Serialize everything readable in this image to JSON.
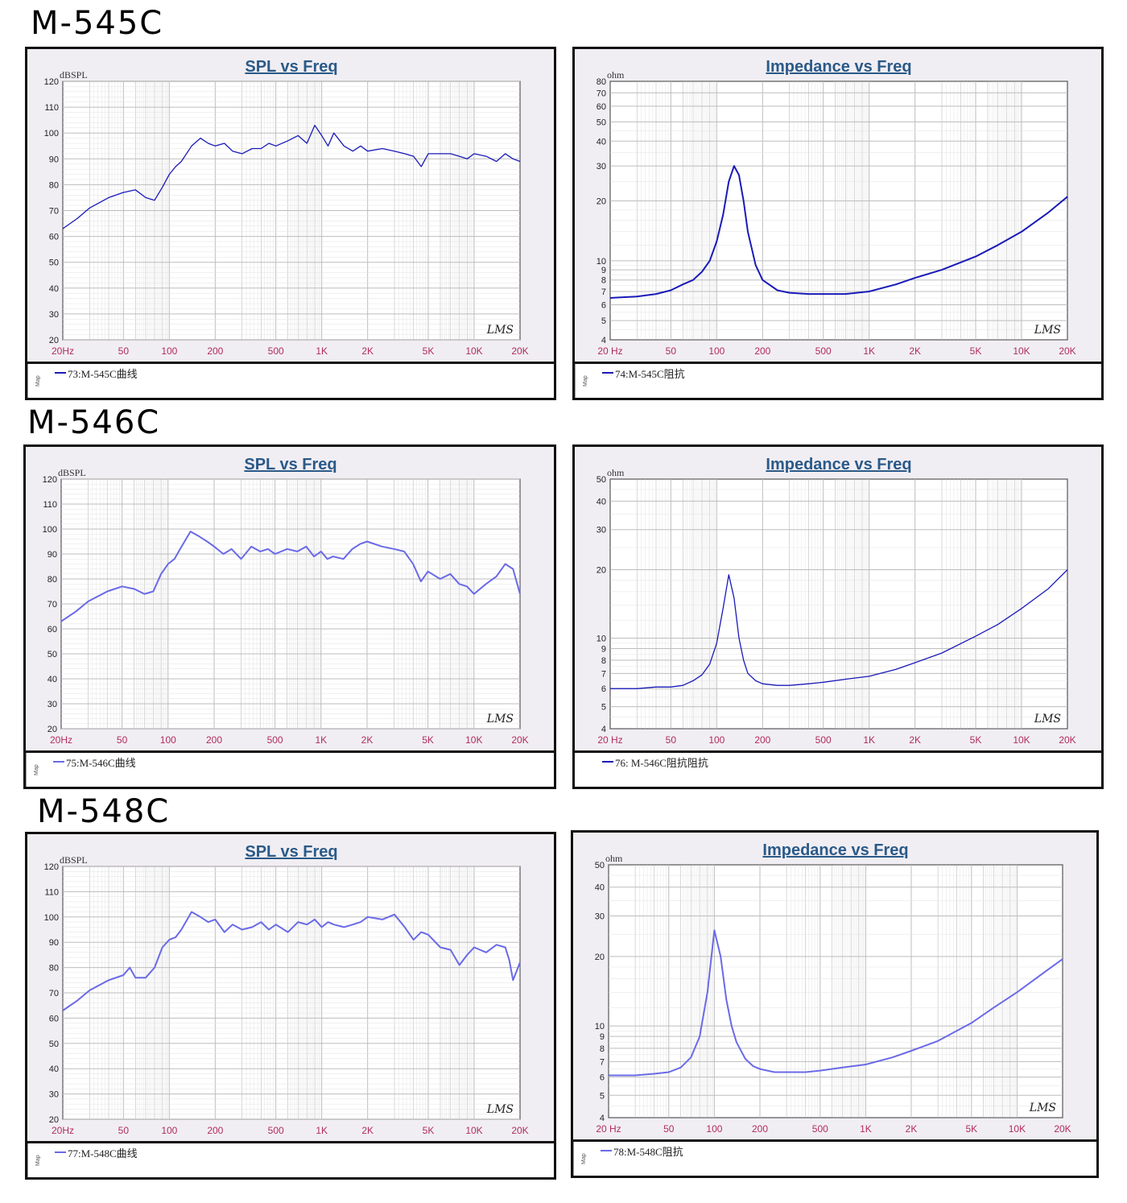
{
  "models": [
    "M-545C",
    "M-546C",
    "M-548C"
  ],
  "colors": {
    "dark_line": "#1a1ab8",
    "light_line": "#6a6ae8",
    "title": "#2a5a88",
    "tick": "#b02c5a",
    "grid": "#bdbdbd"
  },
  "panels": [
    {
      "title": "SPL vs Freq",
      "unit": "dBSPL",
      "legend": "73:M-545C曲线",
      "logo": "LMS",
      "xticks": [
        "20Hz",
        "50",
        "100",
        "200",
        "500",
        "1K",
        "2K",
        "5K",
        "10K",
        "20K"
      ],
      "yticks": [
        "120",
        "110",
        "100",
        "90",
        "80",
        "70",
        "60",
        "50",
        "40",
        "30",
        "20"
      ]
    },
    {
      "title": "Impedance vs Freq",
      "unit": "ohm",
      "legend": "74:M-545C阻抗",
      "logo": "LMS",
      "xticks": [
        "20 Hz",
        "50",
        "100",
        "200",
        "500",
        "1K",
        "2K",
        "5K",
        "10K",
        "20K"
      ],
      "yticks": [
        "80",
        "70",
        "60",
        "50",
        "40",
        "30",
        "20",
        "10",
        "9",
        "8",
        "7",
        "6",
        "5",
        "4"
      ]
    },
    {
      "title": "SPL vs Freq",
      "unit": "dBSPL",
      "legend": "75:M-546C曲线",
      "logo": "LMS",
      "xticks": [
        "20Hz",
        "50",
        "100",
        "200",
        "500",
        "1K",
        "2K",
        "5K",
        "10K",
        "20K"
      ],
      "yticks": [
        "120",
        "110",
        "100",
        "90",
        "80",
        "70",
        "60",
        "50",
        "40",
        "30",
        "20"
      ]
    },
    {
      "title": "Impedance vs Freq",
      "unit": "ohm",
      "legend": "76: M-546C阻抗阻抗",
      "logo": "LMS",
      "xticks": [
        "20 Hz",
        "50",
        "100",
        "200",
        "500",
        "1K",
        "2K",
        "5K",
        "10K",
        "20K"
      ],
      "yticks": [
        "50",
        "40",
        "30",
        "20",
        "10",
        "9",
        "8",
        "7",
        "6",
        "5",
        "4"
      ]
    },
    {
      "title": "SPL vs Freq",
      "unit": "dBSPL",
      "legend": "77:M-548C曲线",
      "logo": "LMS",
      "xticks": [
        "20Hz",
        "50",
        "100",
        "200",
        "500",
        "1K",
        "2K",
        "5K",
        "10K",
        "20K"
      ],
      "yticks": [
        "120",
        "110",
        "100",
        "90",
        "80",
        "70",
        "60",
        "50",
        "40",
        "30",
        "20"
      ]
    },
    {
      "title": "Impedance vs Freq",
      "unit": "ohm",
      "legend": "78:M-548C阻抗",
      "logo": "LMS",
      "xticks": [
        "20 Hz",
        "50",
        "100",
        "200",
        "500",
        "1K",
        "2K",
        "5K",
        "10K",
        "20K"
      ],
      "yticks": [
        "50",
        "40",
        "30",
        "20",
        "10",
        "9",
        "8",
        "7",
        "6",
        "5",
        "4"
      ]
    }
  ],
  "chart_data": [
    {
      "type": "line",
      "title": "SPL vs Freq",
      "ylabel": "dBSPL",
      "xscale": "log",
      "xlim": [
        20,
        20000
      ],
      "ylim": [
        20,
        120
      ],
      "grid": true,
      "series": [
        {
          "name": "73:M-545C曲线",
          "x": [
            20,
            25,
            30,
            40,
            50,
            60,
            70,
            80,
            90,
            100,
            110,
            120,
            140,
            160,
            180,
            200,
            230,
            260,
            300,
            350,
            400,
            450,
            500,
            600,
            700,
            800,
            900,
            1000,
            1100,
            1200,
            1400,
            1600,
            1800,
            2000,
            2500,
            3000,
            3500,
            4000,
            4500,
            5000,
            6000,
            7000,
            8000,
            9000,
            10000,
            12000,
            14000,
            16000,
            18000,
            20000
          ],
          "y": [
            63,
            67,
            71,
            75,
            77,
            78,
            75,
            74,
            79,
            84,
            87,
            89,
            95,
            98,
            96,
            95,
            96,
            93,
            92,
            94,
            94,
            96,
            95,
            97,
            99,
            96,
            103,
            99,
            95,
            100,
            95,
            93,
            95,
            93,
            94,
            93,
            92,
            91,
            87,
            92,
            92,
            92,
            91,
            90,
            92,
            91,
            89,
            92,
            90,
            89
          ]
        }
      ]
    },
    {
      "type": "line",
      "title": "Impedance vs Freq",
      "ylabel": "ohm",
      "xscale": "log",
      "yscale": "log",
      "xlim": [
        20,
        20000
      ],
      "ylim": [
        4,
        80
      ],
      "grid": true,
      "series": [
        {
          "name": "74:M-545C阻抗",
          "x": [
            20,
            30,
            40,
            50,
            60,
            70,
            80,
            90,
            100,
            110,
            120,
            130,
            140,
            150,
            160,
            180,
            200,
            250,
            300,
            400,
            500,
            700,
            1000,
            1500,
            2000,
            3000,
            5000,
            7000,
            10000,
            15000,
            20000
          ],
          "y": [
            6.5,
            6.6,
            6.8,
            7.1,
            7.6,
            8.0,
            8.8,
            10.0,
            12.5,
            17.0,
            25.0,
            30.0,
            27.0,
            20.0,
            14.0,
            9.5,
            8.0,
            7.1,
            6.9,
            6.8,
            6.8,
            6.8,
            7.0,
            7.6,
            8.2,
            9.0,
            10.5,
            12.0,
            14.0,
            17.5,
            21.0
          ]
        }
      ]
    },
    {
      "type": "line",
      "title": "SPL vs Freq",
      "ylabel": "dBSPL",
      "xscale": "log",
      "xlim": [
        20,
        20000
      ],
      "ylim": [
        20,
        120
      ],
      "grid": true,
      "series": [
        {
          "name": "75:M-546C曲线",
          "x": [
            20,
            25,
            30,
            40,
            50,
            60,
            70,
            80,
            90,
            100,
            110,
            120,
            140,
            160,
            180,
            200,
            230,
            260,
            300,
            350,
            400,
            450,
            500,
            600,
            700,
            800,
            900,
            1000,
            1100,
            1200,
            1400,
            1600,
            1800,
            2000,
            2500,
            3000,
            3500,
            4000,
            4500,
            5000,
            6000,
            7000,
            8000,
            9000,
            10000,
            12000,
            14000,
            16000,
            18000,
            20000
          ],
          "y": [
            63,
            67,
            71,
            75,
            77,
            76,
            74,
            75,
            82,
            86,
            88,
            92,
            99,
            97,
            95,
            93,
            90,
            92,
            88,
            93,
            91,
            92,
            90,
            92,
            91,
            93,
            89,
            91,
            88,
            89,
            88,
            92,
            94,
            95,
            93,
            92,
            91,
            86,
            79,
            83,
            80,
            82,
            78,
            77,
            74,
            78,
            81,
            86,
            84,
            74
          ]
        }
      ]
    },
    {
      "type": "line",
      "title": "Impedance vs Freq",
      "ylabel": "ohm",
      "xscale": "log",
      "yscale": "log",
      "xlim": [
        20,
        20000
      ],
      "ylim": [
        4,
        50
      ],
      "grid": true,
      "series": [
        {
          "name": "76: M-546C阻抗阻抗",
          "x": [
            20,
            30,
            40,
            50,
            60,
            70,
            80,
            90,
            100,
            110,
            120,
            130,
            140,
            150,
            160,
            180,
            200,
            250,
            300,
            400,
            500,
            700,
            1000,
            1500,
            2000,
            3000,
            5000,
            7000,
            10000,
            15000,
            20000
          ],
          "y": [
            6.0,
            6.0,
            6.1,
            6.1,
            6.2,
            6.5,
            6.9,
            7.7,
            9.5,
            13.5,
            19.0,
            15.0,
            10.0,
            8.0,
            7.0,
            6.5,
            6.3,
            6.2,
            6.2,
            6.3,
            6.4,
            6.6,
            6.8,
            7.3,
            7.8,
            8.6,
            10.2,
            11.5,
            13.5,
            16.5,
            20.0
          ]
        }
      ]
    },
    {
      "type": "line",
      "title": "SPL vs Freq",
      "ylabel": "dBSPL",
      "xscale": "log",
      "xlim": [
        20,
        20000
      ],
      "ylim": [
        20,
        120
      ],
      "grid": true,
      "series": [
        {
          "name": "77:M-548C曲线",
          "x": [
            20,
            25,
            30,
            40,
            50,
            55,
            60,
            70,
            80,
            90,
            100,
            110,
            120,
            140,
            160,
            180,
            200,
            230,
            260,
            300,
            350,
            400,
            450,
            500,
            600,
            700,
            800,
            900,
            1000,
            1100,
            1200,
            1400,
            1600,
            1800,
            2000,
            2500,
            3000,
            3500,
            4000,
            4500,
            5000,
            6000,
            7000,
            8000,
            9000,
            10000,
            12000,
            14000,
            16000,
            17000,
            18000,
            20000
          ],
          "y": [
            63,
            67,
            71,
            75,
            77,
            80,
            76,
            76,
            80,
            88,
            91,
            92,
            95,
            102,
            100,
            98,
            99,
            94,
            97,
            95,
            96,
            98,
            95,
            97,
            94,
            98,
            97,
            99,
            96,
            98,
            97,
            96,
            97,
            98,
            100,
            99,
            101,
            96,
            91,
            94,
            93,
            88,
            87,
            81,
            85,
            88,
            86,
            89,
            88,
            83,
            75,
            82
          ]
        }
      ]
    },
    {
      "type": "line",
      "title": "Impedance vs Freq",
      "ylabel": "ohm",
      "xscale": "log",
      "yscale": "log",
      "xlim": [
        20,
        20000
      ],
      "ylim": [
        4,
        50
      ],
      "grid": true,
      "series": [
        {
          "name": "78:M-548C阻抗",
          "x": [
            20,
            30,
            40,
            50,
            60,
            70,
            80,
            90,
            100,
            110,
            120,
            130,
            140,
            160,
            180,
            200,
            250,
            300,
            400,
            500,
            700,
            1000,
            1500,
            2000,
            3000,
            5000,
            7000,
            10000,
            15000,
            20000
          ],
          "y": [
            6.1,
            6.1,
            6.2,
            6.3,
            6.6,
            7.3,
            9.0,
            14.0,
            26.0,
            20.0,
            13.0,
            10.0,
            8.5,
            7.2,
            6.7,
            6.5,
            6.3,
            6.3,
            6.3,
            6.4,
            6.6,
            6.8,
            7.3,
            7.8,
            8.6,
            10.3,
            12.0,
            14.0,
            17.0,
            19.5
          ]
        }
      ]
    }
  ]
}
